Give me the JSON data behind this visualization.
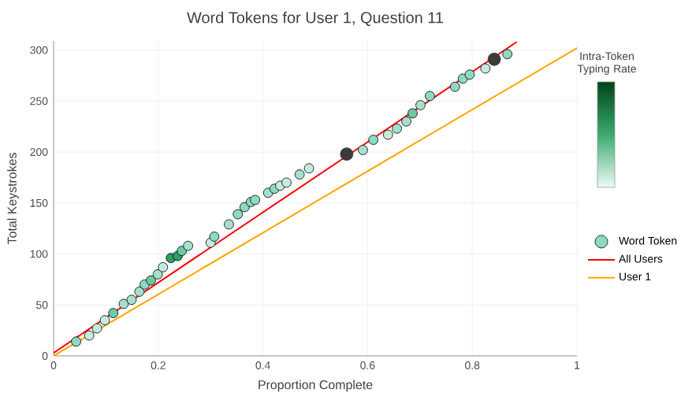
{
  "chart_data": {
    "type": "scatter",
    "title": "Word Tokens for User 1, Question 11",
    "xlabel": "Proportion Complete",
    "ylabel": "Total Keystrokes",
    "clabel": "Intra-Token Typing Rate",
    "xlim": [
      0,
      1
    ],
    "ylim": [
      0,
      309
    ],
    "xticks": [
      0,
      0.2,
      0.4,
      0.6,
      0.8,
      1
    ],
    "yticks": [
      0,
      50,
      100,
      150,
      200,
      250,
      300
    ],
    "grid": true,
    "legend": "right",
    "marker": "circle",
    "series": [
      {
        "name": "Word Token",
        "type": "scatter",
        "x": [
          0.043,
          0.068,
          0.083,
          0.098,
          0.114,
          0.134,
          0.149,
          0.164,
          0.174,
          0.186,
          0.199,
          0.209,
          0.224,
          0.237,
          0.245,
          0.257,
          0.3,
          0.307,
          0.335,
          0.352,
          0.365,
          0.377,
          0.385,
          0.41,
          0.422,
          0.433,
          0.445,
          0.47,
          0.488,
          0.591,
          0.611,
          0.639,
          0.656,
          0.674,
          0.686,
          0.701,
          0.719,
          0.767,
          0.782,
          0.795,
          0.825,
          0.867
        ],
        "values": [
          14,
          20,
          27,
          35,
          42,
          51,
          55,
          63,
          70,
          74,
          80,
          87,
          96,
          98,
          103,
          108,
          111,
          117,
          129,
          139,
          146,
          151,
          153,
          160,
          164,
          167,
          170,
          178,
          184,
          202,
          212,
          217,
          223,
          230,
          238,
          246,
          255,
          264,
          272,
          276,
          282,
          296
        ],
        "colors": [
          "#8fd9c0",
          "#c4ebde",
          "#c4ebde",
          "#c4ebde",
          "#6cc9a4",
          "#a6e0cc",
          "#a6e0cc",
          "#a6e0cc",
          "#8fd9c0",
          "#6cc9a4",
          "#a6e0cc",
          "#c4ebde",
          "#2e9e62",
          "#2e9e62",
          "#6cc9a4",
          "#a6e0cc",
          "#c4ebde",
          "#8fd9c0",
          "#a6e0cc",
          "#8fd9c0",
          "#8fd9c0",
          "#8fd9c0",
          "#8fd9c0",
          "#a6e0cc",
          "#8fd9c0",
          "#c4ebde",
          "#c4ebde",
          "#a6e0cc",
          "#c4ebde",
          "#a6e0cc",
          "#8fd9c0",
          "#c4ebde",
          "#a6e0cc",
          "#a6e0cc",
          "#6cc9a4",
          "#a6e0cc",
          "#8fd9c0",
          "#8fd9c0",
          "#8fd9c0",
          "#8fd9c0",
          "#c4ebde",
          "#8fd9c0"
        ]
      },
      {
        "x": [
          0.56,
          0.842
        ],
        "values": [
          198,
          291
        ],
        "color": "#3a3a3a"
      },
      {
        "name": "All Users",
        "type": "line",
        "x": [
          0,
          0.885
        ],
        "values": [
          3,
          308
        ],
        "color": "#ff0000",
        "line_style": "solid",
        "marker": "none"
      },
      {
        "name": "User 1",
        "type": "line",
        "x": [
          0,
          1
        ],
        "values": [
          0,
          302
        ],
        "color": "#ffa500",
        "line_style": "solid",
        "marker": "none"
      }
    ]
  }
}
